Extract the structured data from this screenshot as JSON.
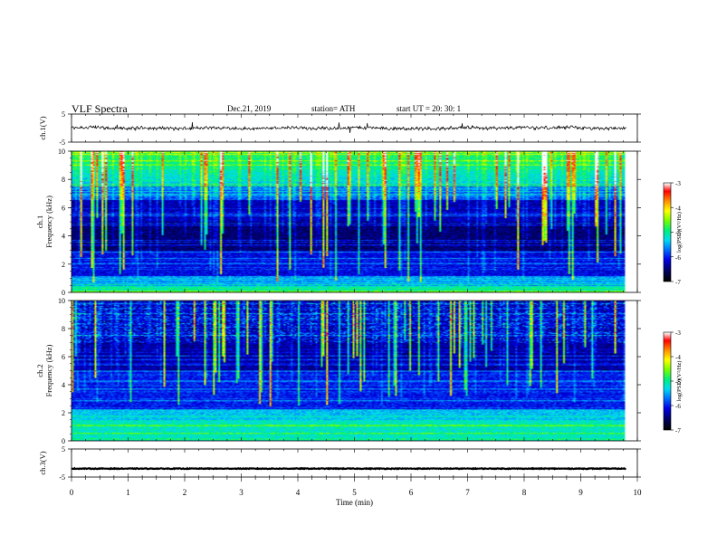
{
  "header": {
    "title": "VLF  Spectra",
    "date": "Dec.21, 2019",
    "station": "station= ATH",
    "start_ut": "start  UT  =    20: 30: 1"
  },
  "chart_data": [
    {
      "type": "line",
      "name": "waveform-ch1",
      "ylabel": "ch.1(V)",
      "ylim": [
        -5,
        5
      ],
      "yticks": [
        {
          "value": 5,
          "label": "5"
        },
        {
          "value": -5,
          "label": "-5"
        }
      ],
      "xlim": [
        0,
        10
      ],
      "baseline": 0,
      "data_end": 9.8
    },
    {
      "type": "heatmap",
      "name": "spectrogram-ch1",
      "ylabel": "ch.1\nFrequency  (kHz)",
      "ylim": [
        0,
        10
      ],
      "yticks": [
        {
          "value": 0,
          "label": "0"
        },
        {
          "value": 2,
          "label": "2"
        },
        {
          "value": 4,
          "label": "4"
        },
        {
          "value": 6,
          "label": "6"
        },
        {
          "value": 8,
          "label": "8"
        },
        {
          "value": 10,
          "label": "10"
        }
      ],
      "xlim": [
        0,
        10
      ],
      "data_end": 9.8,
      "colorbar": {
        "label": "log(PSD)(V²/Hz)",
        "range": [
          -7,
          -3
        ],
        "ticks": [
          {
            "value": -3,
            "label": "-3"
          },
          {
            "value": -4,
            "label": "-4"
          },
          {
            "value": -5,
            "label": "-5"
          },
          {
            "value": -6,
            "label": "-6"
          },
          {
            "value": -7,
            "label": "-7"
          }
        ]
      }
    },
    {
      "type": "heatmap",
      "name": "spectrogram-ch2",
      "ylabel": "ch.2\nFrequency  (kHz)",
      "ylim": [
        0,
        10
      ],
      "yticks": [
        {
          "value": 0,
          "label": "0"
        },
        {
          "value": 2,
          "label": "2"
        },
        {
          "value": 4,
          "label": "4"
        },
        {
          "value": 6,
          "label": "6"
        },
        {
          "value": 8,
          "label": "8"
        },
        {
          "value": 10,
          "label": "10"
        }
      ],
      "xlim": [
        0,
        10
      ],
      "data_end": 9.8,
      "colorbar": {
        "label": "log(PSD)(V²/Hz)",
        "range": [
          -7,
          -3
        ],
        "ticks": [
          {
            "value": -3,
            "label": "-3"
          },
          {
            "value": -4,
            "label": "-4"
          },
          {
            "value": -5,
            "label": "-5"
          },
          {
            "value": -6,
            "label": "-6"
          },
          {
            "value": -7,
            "label": "-7"
          }
        ]
      }
    },
    {
      "type": "line",
      "name": "waveform-ch3",
      "ylabel": "ch.3(V)",
      "ylim": [
        -5,
        5
      ],
      "yticks": [
        {
          "value": 5,
          "label": "5"
        },
        {
          "value": -5,
          "label": "-5"
        }
      ],
      "xlim": [
        0,
        10
      ],
      "baseline": -2,
      "data_end": 9.8,
      "xlabel": "Time  (min)",
      "xticks": [
        {
          "value": 0,
          "label": "0"
        },
        {
          "value": 1,
          "label": "1"
        },
        {
          "value": 2,
          "label": "2"
        },
        {
          "value": 3,
          "label": "3"
        },
        {
          "value": 4,
          "label": "4"
        },
        {
          "value": 5,
          "label": "5"
        },
        {
          "value": 6,
          "label": "6"
        },
        {
          "value": 7,
          "label": "7"
        },
        {
          "value": 8,
          "label": "8"
        },
        {
          "value": 9,
          "label": "9"
        },
        {
          "value": 10,
          "label": "10"
        }
      ]
    }
  ]
}
